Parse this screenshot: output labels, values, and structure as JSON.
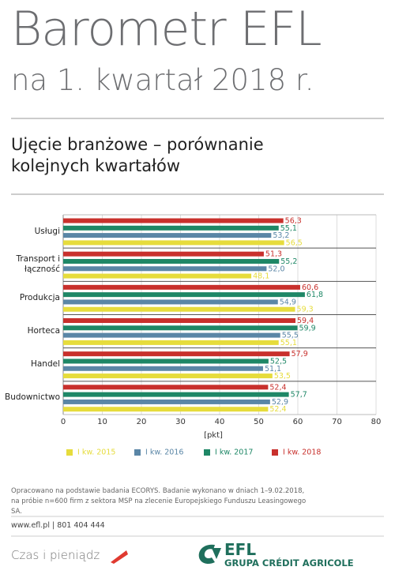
{
  "header": {
    "title": "Barometr EFL",
    "subtitle": "na 1. kwartał 2018 r."
  },
  "chart_data": {
    "type": "bar",
    "orientation": "horizontal",
    "title": "Ujęcie branżowe – porównanie kolejnych kwartałów",
    "categories": [
      "Usługi",
      "Transport i łączność",
      "Produkcja",
      "Horteca",
      "Handel",
      "Budownictwo"
    ],
    "series": [
      {
        "name": "I kw. 2015",
        "color": "#e6dc3c",
        "values": [
          56.5,
          48.1,
          59.3,
          55.1,
          53.5,
          52.4
        ],
        "value_labels": [
          "56,5",
          "48,1",
          "59,3",
          "55,1",
          "53,5",
          "52,4"
        ]
      },
      {
        "name": "I kw. 2016",
        "color": "#5a86a6",
        "values": [
          53.2,
          52.0,
          54.9,
          55.5,
          51.1,
          52.9
        ],
        "value_labels": [
          "53,2",
          "52,0",
          "54,9",
          "55,5",
          "51,1",
          "52,9"
        ]
      },
      {
        "name": "I kw. 2017",
        "color": "#1e8766",
        "values": [
          55.1,
          55.2,
          61.8,
          59.9,
          52.5,
          57.7
        ],
        "value_labels": [
          "55,1",
          "55,2",
          "61,8",
          "59,9",
          "52,5",
          "57,7"
        ]
      },
      {
        "name": "I kw. 2018",
        "color": "#c8302c",
        "values": [
          56.3,
          51.3,
          60.6,
          59.4,
          57.9,
          52.4
        ],
        "value_labels": [
          "56,3",
          "51,3",
          "60,6",
          "59,4",
          "57,9",
          "52,4"
        ]
      }
    ],
    "xlabel": "[pkt]",
    "xlim": [
      0,
      80
    ],
    "xticks": [
      0,
      10,
      20,
      30,
      40,
      50,
      60,
      70,
      80
    ],
    "grid": true,
    "legend": "bottom"
  },
  "footer": {
    "note": "Opracowano na podstawie badania ECORYS. Badanie wykonano w dniach 1–9.02.2018, na próbie n=600 firm z sektora MSP na zlecenie Europejskiego Funduszu Leasingowego SA.",
    "contact": "www.efl.pl | 801 404 444",
    "slogan": "Czas i pieniądz",
    "logo_name": "EFL",
    "logo_group": "GRUPA CRÉDIT AGRICOLE"
  }
}
